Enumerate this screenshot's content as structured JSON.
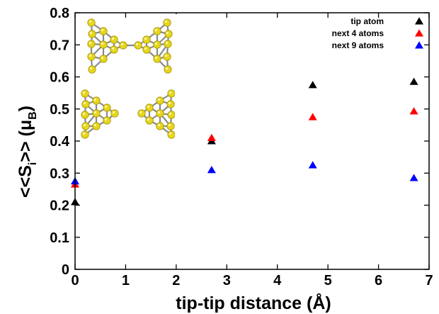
{
  "chart_data": {
    "type": "scatter",
    "title": "",
    "xlabel": "tip-tip distance (Å)",
    "ylabel": {
      "open": "<<S",
      "sub": "i",
      "close": ">> (μ",
      "unit_sub": "B",
      "end": ")"
    },
    "xlim": [
      0,
      7
    ],
    "ylim": [
      0,
      0.8
    ],
    "xticks": [
      0,
      1,
      2,
      3,
      4,
      5,
      6,
      7
    ],
    "yticks": [
      0,
      0.1,
      0.2,
      0.3,
      0.4,
      0.5,
      0.6,
      0.7,
      0.8
    ],
    "ytick_labels": [
      "0",
      "0.1",
      "0.2",
      "0.3",
      "0.4",
      "0.5",
      "0.6",
      "0.7",
      "0.8"
    ],
    "grid": false,
    "legend_position": "top-right",
    "marker": "triangle",
    "series": [
      {
        "name": "tip atom",
        "color": "#000000",
        "x": [
          0,
          2.7,
          4.7,
          6.7
        ],
        "y": [
          0.21,
          0.4,
          0.575,
          0.585
        ]
      },
      {
        "name": "next 4 atoms",
        "color": "#ff0000",
        "x": [
          0,
          2.7,
          4.7,
          6.7
        ],
        "y": [
          0.265,
          0.41,
          0.475,
          0.493
        ]
      },
      {
        "name": "next 9 atoms",
        "color": "#0000ff",
        "x": [
          0,
          2.7,
          4.7,
          6.7
        ],
        "y": [
          0.275,
          0.31,
          0.325,
          0.285
        ]
      }
    ],
    "inset": {
      "type": "image",
      "description_icon": "gold-atom-cluster-structures"
    }
  }
}
